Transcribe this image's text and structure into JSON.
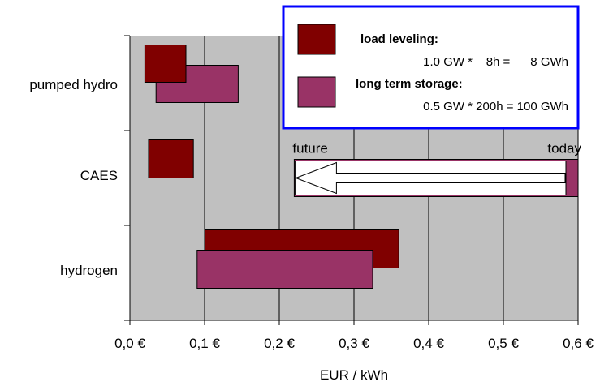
{
  "colors": {
    "plot_bg": "#c0c0c0",
    "load_leveling": "#800000",
    "long_term_storage": "#993366",
    "legend_border": "#0000ff",
    "arrow_fill": "#ffffff"
  },
  "chart_data": {
    "type": "bar",
    "orientation": "horizontal-range",
    "title": "",
    "xlabel": "EUR / kWh",
    "ylabel": "",
    "xlim": [
      0,
      0.6
    ],
    "x_ticks": [
      0,
      0.1,
      0.2,
      0.3,
      0.4,
      0.5,
      0.6
    ],
    "x_tick_labels": [
      "0,0 €",
      "0,1 €",
      "0,2 €",
      "0,3 €",
      "0,4 €",
      "0,5 €",
      "0,6 €"
    ],
    "grid": "vertical",
    "categories": [
      "pumped hydro",
      "CAES",
      "hydrogen"
    ],
    "series": [
      {
        "name": "load leveling",
        "ranges": [
          [
            0.02,
            0.075
          ],
          [
            0.025,
            0.085
          ],
          [
            0.1,
            0.36
          ]
        ]
      },
      {
        "name": "long term storage",
        "ranges": [
          [
            0.035,
            0.145
          ],
          null,
          [
            0.09,
            0.325
          ]
        ]
      }
    ],
    "legend": {
      "placement": "top-right",
      "entries": [
        {
          "title": "load leveling:",
          "detail": "1.0 GW *    8h =      8 GWh"
        },
        {
          "title": "long term storage:",
          "detail": "0.5 GW * 200h = 100 GWh"
        }
      ]
    },
    "annotation": {
      "from_label": "today",
      "to_label": "future",
      "from_x": 0.6,
      "to_x": 0.22,
      "row": "CAES"
    }
  }
}
